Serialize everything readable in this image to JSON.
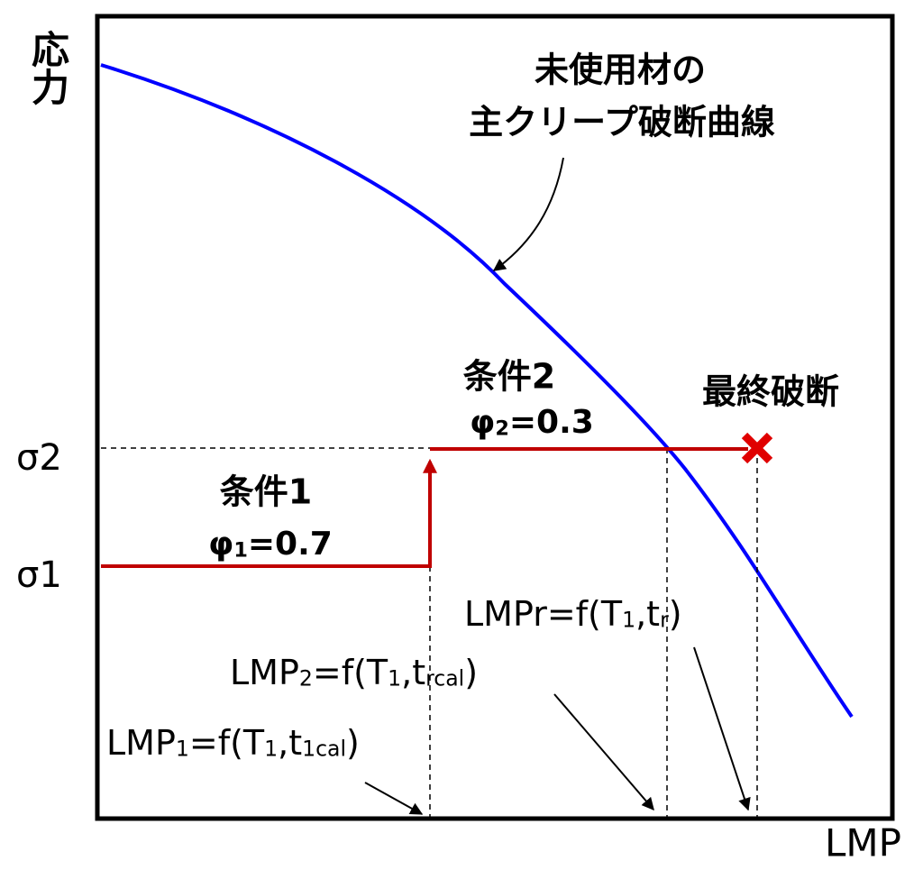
{
  "y_axis_label": "応力",
  "x_axis_label": "LMP",
  "sigma_labels": [
    "σ2",
    "σ1"
  ],
  "curve_label": [
    "未使用材の",
    "主クリープ破断曲線"
  ],
  "final_rupture": "最終破断",
  "condition2": {
    "title": "条件2",
    "phi": [
      {
        "text": "φ"
      },
      {
        "text": "2",
        "sub": true
      },
      {
        "text": "=0.3"
      }
    ]
  },
  "condition1": {
    "title": "条件1",
    "phi": [
      {
        "text": "φ"
      },
      {
        "text": "1",
        "sub": true
      },
      {
        "text": "=0.7"
      }
    ]
  },
  "lmp_r": [
    {
      "text": "LMPr=f(T"
    },
    {
      "text": "1",
      "sub": true
    },
    {
      "text": ",t"
    },
    {
      "text": "r",
      "sub": true
    },
    {
      "text": ")"
    }
  ],
  "lmp_2": [
    {
      "text": "LMP"
    },
    {
      "text": "2",
      "sub": true
    },
    {
      "text": "=f(T"
    },
    {
      "text": "1",
      "sub": true
    },
    {
      "text": ",t"
    },
    {
      "text": "rcal",
      "sub": true
    },
    {
      "text": ")"
    }
  ],
  "lmp_1": [
    {
      "text": "LMP"
    },
    {
      "text": "1",
      "sub": true
    },
    {
      "text": "=f(T"
    },
    {
      "text": "1",
      "sub": true
    },
    {
      "text": ",t"
    },
    {
      "text": "1cal",
      "sub": true
    },
    {
      "text": ")"
    }
  ]
}
